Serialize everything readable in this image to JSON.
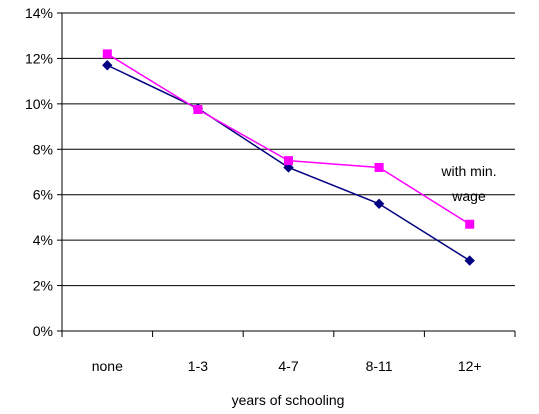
{
  "chart_data": {
    "type": "line",
    "categories": [
      "none",
      "1-3",
      "4-7",
      "8-11",
      "12+"
    ],
    "xlabel": "years of schooling",
    "ylabel": "",
    "ylim": [
      0,
      14
    ],
    "yticks": [
      0,
      2,
      4,
      6,
      8,
      10,
      12,
      14
    ],
    "ytick_labels": [
      "0%",
      "2%",
      "4%",
      "6%",
      "8%",
      "10%",
      "12%",
      "14%"
    ],
    "grid": true,
    "series": [
      {
        "values": [
          11.7,
          9.8,
          7.2,
          5.6,
          3.1
        ],
        "color": "#000080",
        "marker": "diamond"
      },
      {
        "values": [
          12.2,
          9.75,
          7.5,
          7.2,
          4.7
        ],
        "color": "#ff00ff",
        "marker": "square"
      }
    ],
    "annotation": {
      "lines": [
        "with min.",
        "wage"
      ]
    }
  }
}
